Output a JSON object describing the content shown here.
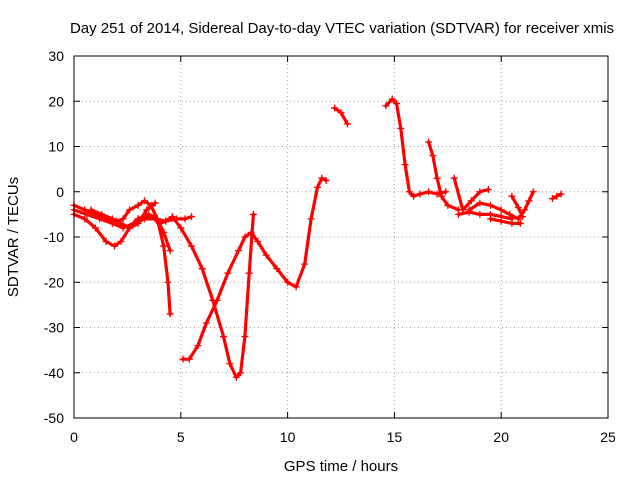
{
  "chart_data": {
    "type": "scatter",
    "title": "Day 251 of 2014, Sidereal Day-to-day VTEC variation (SDTVAR) for receiver xmis",
    "xlabel": "GPS time / hours",
    "ylabel": "SDTVAR / TECUs",
    "xlim": [
      0,
      25
    ],
    "ylim": [
      -50,
      30
    ],
    "xticks": [
      0,
      5,
      10,
      15,
      20,
      25
    ],
    "yticks": [
      -50,
      -40,
      -30,
      -20,
      -10,
      0,
      10,
      20,
      30
    ],
    "grid": true,
    "marker": "+",
    "color": "#ff0000",
    "series": [
      {
        "x": [
          0,
          0.5,
          1.0,
          1.5,
          2.0,
          2.3,
          2.6,
          3.0,
          3.3,
          3.6,
          3.9,
          4.2,
          4.4,
          4.5
        ],
        "y": [
          -3,
          -4,
          -5,
          -6,
          -6.5,
          -6,
          -4,
          -3,
          -2,
          -3,
          -6,
          -12,
          -20,
          -27
        ]
      },
      {
        "x": [
          0,
          0.5,
          1.0,
          1.5,
          1.9,
          2.2,
          2.6,
          3.0,
          3.5,
          3.9,
          4.2,
          4.5
        ],
        "y": [
          -5,
          -6,
          -8,
          -11,
          -12,
          -11,
          -8,
          -6,
          -5,
          -6,
          -9,
          -13
        ]
      },
      {
        "x": [
          0,
          0.6,
          1.2,
          1.8,
          2.3,
          2.8,
          3.3,
          3.8,
          4.3,
          4.8,
          5.2,
          5.5
        ],
        "y": [
          -4,
          -5,
          -6,
          -7,
          -8,
          -7,
          -6,
          -6,
          -6.5,
          -6,
          -6,
          -5.5
        ]
      },
      {
        "x": [
          0.8,
          1.3,
          1.8,
          2.2,
          2.6,
          3.0,
          3.4,
          3.8
        ],
        "y": [
          -4,
          -5,
          -6,
          -7,
          -8,
          -7,
          -4,
          -2.5
        ]
      },
      {
        "x": [
          3.0,
          3.4,
          3.8,
          4.0,
          4.3,
          4.6,
          5.0,
          5.5,
          6.0,
          6.5,
          7.0,
          7.3,
          7.6,
          7.8,
          8.0,
          8.2,
          8.4
        ],
        "y": [
          -6,
          -5.5,
          -6,
          -7,
          -6.5,
          -5.5,
          -8,
          -12,
          -17,
          -24,
          -32,
          -38,
          -41,
          -40,
          -32,
          -18,
          -5
        ]
      },
      {
        "x": [
          5.1,
          5.4,
          5.8,
          6.2,
          6.7,
          7.2,
          7.7,
          8.0,
          8.3,
          8.6,
          9.0,
          9.5,
          10.0,
          10.4,
          10.8,
          11.1,
          11.4,
          11.6,
          11.8
        ],
        "y": [
          -37,
          -37,
          -34,
          -29,
          -24,
          -18,
          -13,
          -10,
          -9,
          -11,
          -14,
          -17,
          -20,
          -21,
          -16,
          -6,
          1,
          3,
          2.5
        ]
      },
      {
        "x": [
          12.2,
          12.5,
          12.8
        ],
        "y": [
          18.5,
          17.5,
          15
        ]
      },
      {
        "x": [
          14.6,
          14.9,
          15.1,
          15.3,
          15.5,
          15.7,
          15.9,
          16.2,
          16.6,
          17.0,
          17.4
        ],
        "y": [
          19,
          20.5,
          19.5,
          14,
          6,
          0,
          -1,
          -0.5,
          0,
          -0.5,
          0
        ]
      },
      {
        "x": [
          16.6,
          16.8,
          17.0,
          17.2,
          17.5,
          18.0
        ],
        "y": [
          11,
          8,
          3,
          -1,
          -3,
          -4
        ]
      },
      {
        "x": [
          17.8,
          18.2,
          18.6,
          19.0,
          19.4
        ],
        "y": [
          3,
          -4,
          -2,
          0,
          0.5
        ]
      },
      {
        "x": [
          18.0,
          18.5,
          19.0,
          19.5,
          20.0,
          20.5
        ],
        "y": [
          -5,
          -4.5,
          -5,
          -5,
          -5.5,
          -6
        ]
      },
      {
        "x": [
          18.5,
          19.0,
          19.5,
          20.0,
          20.4,
          20.8,
          21.1,
          21.3,
          21.5
        ],
        "y": [
          -4,
          -2.5,
          -3,
          -4,
          -5,
          -6,
          -4,
          -2,
          0
        ]
      },
      {
        "x": [
          19.5,
          20.0,
          20.5,
          20.9
        ],
        "y": [
          -6,
          -6.5,
          -7,
          -7
        ]
      },
      {
        "x": [
          20.5,
          20.8,
          21.0
        ],
        "y": [
          -1,
          -3.5,
          -5.5
        ]
      },
      {
        "x": [
          22.4,
          22.6,
          22.8
        ],
        "y": [
          -1.5,
          -1,
          -0.5
        ]
      }
    ]
  }
}
